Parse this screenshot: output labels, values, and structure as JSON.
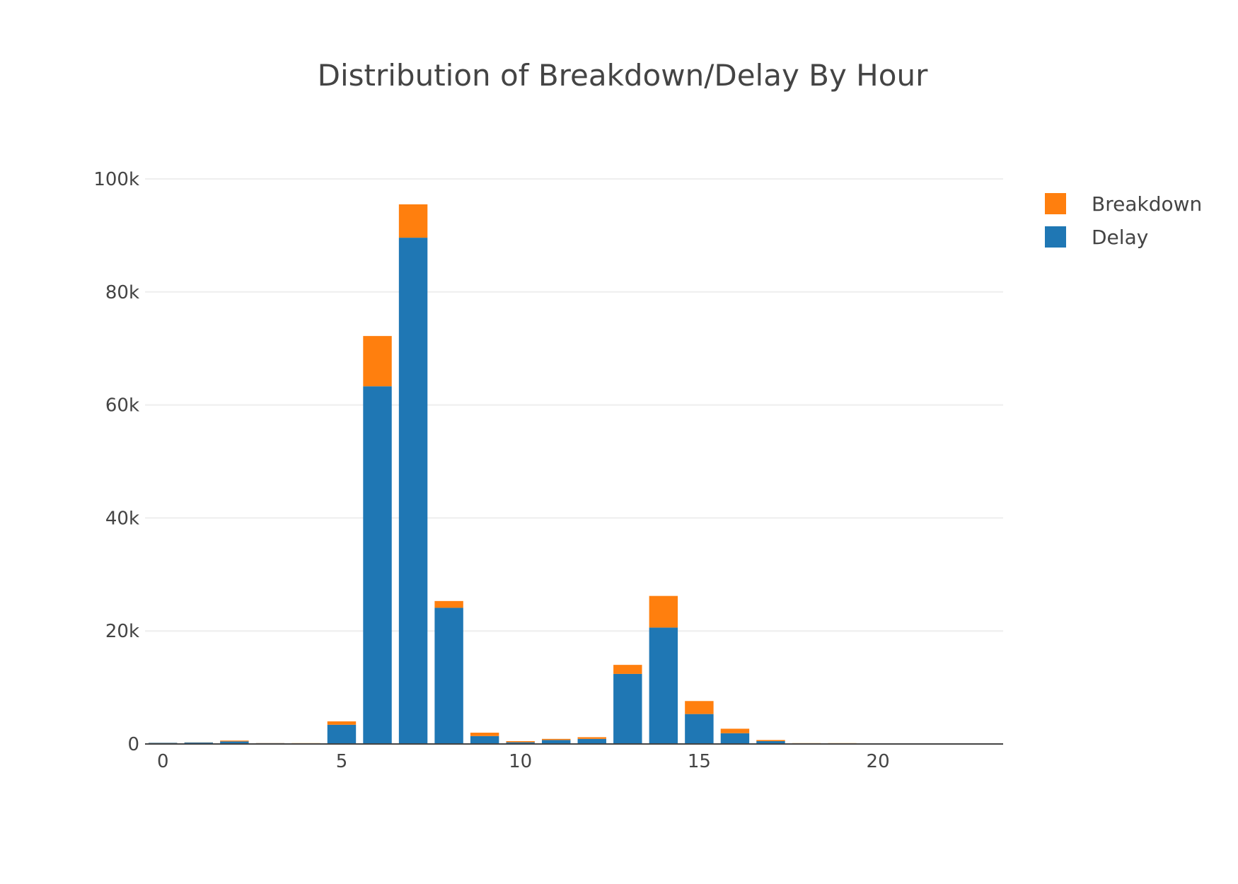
{
  "chart_data": {
    "type": "bar",
    "barmode": "stack",
    "title": "Distribution of Breakdown/Delay By Hour",
    "xlabel": "",
    "ylabel": "",
    "x": [
      0,
      1,
      2,
      3,
      4,
      5,
      6,
      7,
      8,
      9,
      10,
      11,
      12,
      13,
      14,
      15,
      16,
      17,
      18,
      19,
      20,
      21,
      22,
      23
    ],
    "series": [
      {
        "name": "Delay",
        "color": "#1f77b4",
        "values": [
          200,
          250,
          450,
          150,
          100,
          3400,
          63300,
          89600,
          24100,
          1400,
          300,
          700,
          900,
          12400,
          20600,
          5300,
          1900,
          500,
          100,
          50,
          30,
          20,
          20,
          20
        ]
      },
      {
        "name": "Breakdown",
        "color": "#ff7f0e",
        "values": [
          20,
          30,
          150,
          20,
          50,
          600,
          8900,
          5900,
          1200,
          600,
          200,
          200,
          300,
          1600,
          5600,
          2300,
          800,
          200,
          50,
          100,
          10,
          10,
          10,
          10
        ]
      }
    ],
    "xlim": [
      -0.5,
      23.5
    ],
    "ylim": [
      0,
      100000
    ],
    "xticks": [
      0,
      5,
      10,
      15,
      20
    ],
    "xtick_labels": [
      "0",
      "5",
      "10",
      "15",
      "20"
    ],
    "yticks": [
      0,
      20000,
      40000,
      60000,
      80000,
      100000
    ],
    "ytick_labels": [
      "0",
      "20k",
      "40k",
      "60k",
      "80k",
      "100k"
    ],
    "grid": true,
    "legend": {
      "placement": "top-right",
      "entries": [
        {
          "name": "Breakdown",
          "color": "#ff7f0e"
        },
        {
          "name": "Delay",
          "color": "#1f77b4"
        }
      ]
    }
  }
}
